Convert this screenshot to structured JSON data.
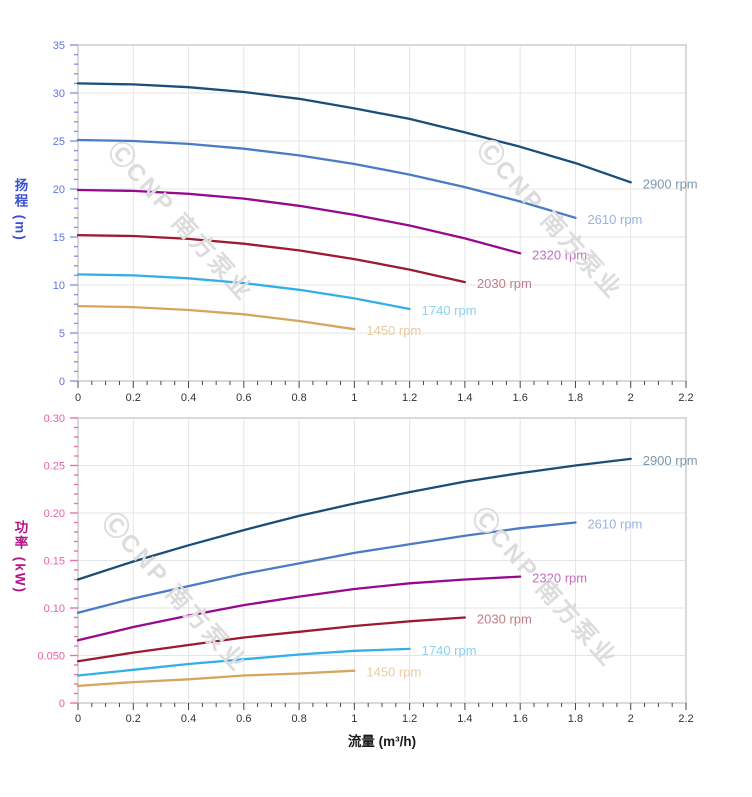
{
  "watermark": {
    "logo": "Ⓒ",
    "text": "CNP 南方泵业",
    "color": "#dcdcdc"
  },
  "x_axis": {
    "title": "流量 (m³/h)",
    "min": 0,
    "max": 2.2,
    "major_tick_step": 0.2,
    "minor_tick_step": 0.05,
    "tick_labels": [
      "0",
      "0.2",
      "0.4",
      "0.6",
      "0.8",
      "1",
      "1.2",
      "1.4",
      "1.6",
      "1.8",
      "2",
      "2.2"
    ],
    "tick_color": "#444444",
    "label_color": "#333333",
    "title_color": "#1a1a1a"
  },
  "chart_data": [
    {
      "id": "head-curve",
      "type": "line",
      "title": "",
      "xlabel": "流量 (m³/h)",
      "ylabel": "扬程 (m)",
      "xlim": [
        0,
        2.2
      ],
      "ylim": [
        0,
        35
      ],
      "y_major_step": 5,
      "y_minor_step": 1,
      "y_tick_labels": [
        "0",
        "5",
        "10",
        "15",
        "20",
        "25",
        "30",
        "35"
      ],
      "grid": true,
      "legend_position": "at-line-end",
      "axis_colors": {
        "tick": "#8892e8",
        "tick_label": "#6472de",
        "title": "#3a50d0"
      },
      "series": [
        {
          "name": "2900 rpm",
          "color": "#1a4e79",
          "label_color": "#7c99af",
          "x": [
            0,
            0.2,
            0.4,
            0.6,
            0.8,
            1.0,
            1.2,
            1.4,
            1.6,
            1.8,
            2.0
          ],
          "y": [
            31.0,
            30.9,
            30.6,
            30.1,
            29.4,
            28.4,
            27.3,
            25.9,
            24.4,
            22.7,
            20.7
          ]
        },
        {
          "name": "2610 rpm",
          "color": "#4a7bc4",
          "label_color": "#96b4de",
          "x": [
            0,
            0.2,
            0.4,
            0.6,
            0.8,
            1.0,
            1.2,
            1.4,
            1.6,
            1.8
          ],
          "y": [
            25.1,
            25.0,
            24.7,
            24.2,
            23.5,
            22.6,
            21.5,
            20.2,
            18.7,
            17.0
          ]
        },
        {
          "name": "2320 rpm",
          "color": "#970a8f",
          "label_color": "#c370be",
          "x": [
            0,
            0.2,
            0.4,
            0.6,
            0.8,
            1.0,
            1.2,
            1.4,
            1.6
          ],
          "y": [
            19.9,
            19.8,
            19.5,
            19.0,
            18.25,
            17.3,
            16.2,
            14.85,
            13.3
          ]
        },
        {
          "name": "2030 rpm",
          "color": "#9c1b33",
          "label_color": "#c57b89",
          "x": [
            0,
            0.2,
            0.4,
            0.6,
            0.8,
            1.0,
            1.2,
            1.4
          ],
          "y": [
            15.2,
            15.1,
            14.8,
            14.3,
            13.6,
            12.7,
            11.6,
            10.3
          ]
        },
        {
          "name": "1740 rpm",
          "color": "#33afe5",
          "label_color": "#89d1f0",
          "x": [
            0,
            0.2,
            0.4,
            0.6,
            0.8,
            1.0,
            1.2
          ],
          "y": [
            11.1,
            11.0,
            10.7,
            10.2,
            9.5,
            8.6,
            7.5
          ]
        },
        {
          "name": "1450 rpm",
          "color": "#d6a55f",
          "label_color": "#e7cba2",
          "x": [
            0,
            0.2,
            0.4,
            0.6,
            0.8,
            1.0
          ],
          "y": [
            7.8,
            7.7,
            7.4,
            6.95,
            6.25,
            5.4
          ]
        }
      ]
    },
    {
      "id": "power-curve",
      "type": "line",
      "title": "",
      "xlabel": "流量 (m³/h)",
      "ylabel": "功率 (kW)",
      "xlim": [
        0,
        2.2
      ],
      "ylim": [
        0,
        0.3
      ],
      "y_major_step": 0.05,
      "y_minor_step": 0.01,
      "y_tick_labels": [
        "0",
        "0.050",
        "0.10",
        "0.15",
        "0.20",
        "0.25",
        "0.30"
      ],
      "grid": true,
      "legend_position": "at-line-end",
      "axis_colors": {
        "tick": "#f06eb0",
        "tick_label": "#ea5fa8",
        "title": "#b5128a"
      },
      "series": [
        {
          "name": "2900 rpm",
          "color": "#1a4e79",
          "label_color": "#7c99af",
          "x": [
            0,
            0.2,
            0.4,
            0.6,
            0.8,
            1.0,
            1.2,
            1.4,
            1.6,
            1.8,
            2.0
          ],
          "y": [
            0.13,
            0.149,
            0.166,
            0.182,
            0.197,
            0.21,
            0.222,
            0.233,
            0.242,
            0.25,
            0.257
          ]
        },
        {
          "name": "2610 rpm",
          "color": "#4a7bc4",
          "label_color": "#96b4de",
          "x": [
            0,
            0.2,
            0.4,
            0.6,
            0.8,
            1.0,
            1.2,
            1.4,
            1.6,
            1.8
          ],
          "y": [
            0.095,
            0.11,
            0.123,
            0.136,
            0.147,
            0.158,
            0.167,
            0.176,
            0.184,
            0.19
          ]
        },
        {
          "name": "2320 rpm",
          "color": "#970a8f",
          "label_color": "#c370be",
          "x": [
            0,
            0.2,
            0.4,
            0.6,
            0.8,
            1.0,
            1.2,
            1.4,
            1.6
          ],
          "y": [
            0.066,
            0.08,
            0.092,
            0.103,
            0.112,
            0.12,
            0.126,
            0.13,
            0.133
          ]
        },
        {
          "name": "2030 rpm",
          "color": "#9c1b33",
          "label_color": "#c57b89",
          "x": [
            0,
            0.2,
            0.4,
            0.6,
            0.8,
            1.0,
            1.2,
            1.4
          ],
          "y": [
            0.044,
            0.053,
            0.061,
            0.069,
            0.075,
            0.081,
            0.086,
            0.09
          ]
        },
        {
          "name": "1740 rpm",
          "color": "#33afe5",
          "label_color": "#89d1f0",
          "x": [
            0,
            0.2,
            0.4,
            0.6,
            0.8,
            1.0,
            1.2
          ],
          "y": [
            0.029,
            0.035,
            0.041,
            0.046,
            0.051,
            0.055,
            0.057
          ]
        },
        {
          "name": "1450 rpm",
          "color": "#d6a55f",
          "label_color": "#e7cba2",
          "x": [
            0,
            0.2,
            0.4,
            0.6,
            0.8,
            1.0
          ],
          "y": [
            0.018,
            0.022,
            0.025,
            0.029,
            0.031,
            0.034
          ]
        }
      ]
    }
  ]
}
